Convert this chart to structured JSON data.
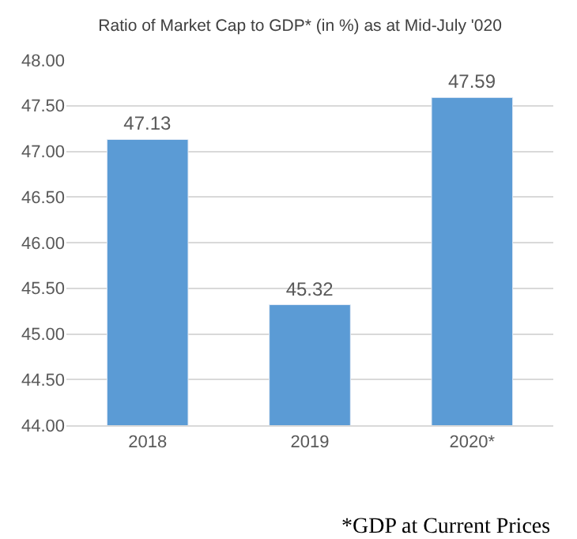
{
  "chart_data": {
    "type": "bar",
    "title": "Ratio of Market Cap to GDP* (in %) as at Mid-July '020",
    "categories": [
      "2018",
      "2019",
      "2020*"
    ],
    "values": [
      47.13,
      45.32,
      47.59
    ],
    "color": "#5b9bd5",
    "ylim": [
      44,
      48
    ],
    "yticks": [
      {
        "value": 44,
        "label": "44.00"
      },
      {
        "value": 44.5,
        "label": "44.50"
      },
      {
        "value": 45,
        "label": "45.00"
      },
      {
        "value": 45.5,
        "label": "45.50"
      },
      {
        "value": 46,
        "label": "46.00"
      },
      {
        "value": 46.5,
        "label": "46.50"
      },
      {
        "value": 47,
        "label": "47.00"
      },
      {
        "value": 47.5,
        "label": "47.50"
      },
      {
        "value": 48,
        "label": "48.00"
      }
    ],
    "grid": "y",
    "data_labels": true,
    "annotations": [
      "*GDP at Current Prices"
    ]
  }
}
